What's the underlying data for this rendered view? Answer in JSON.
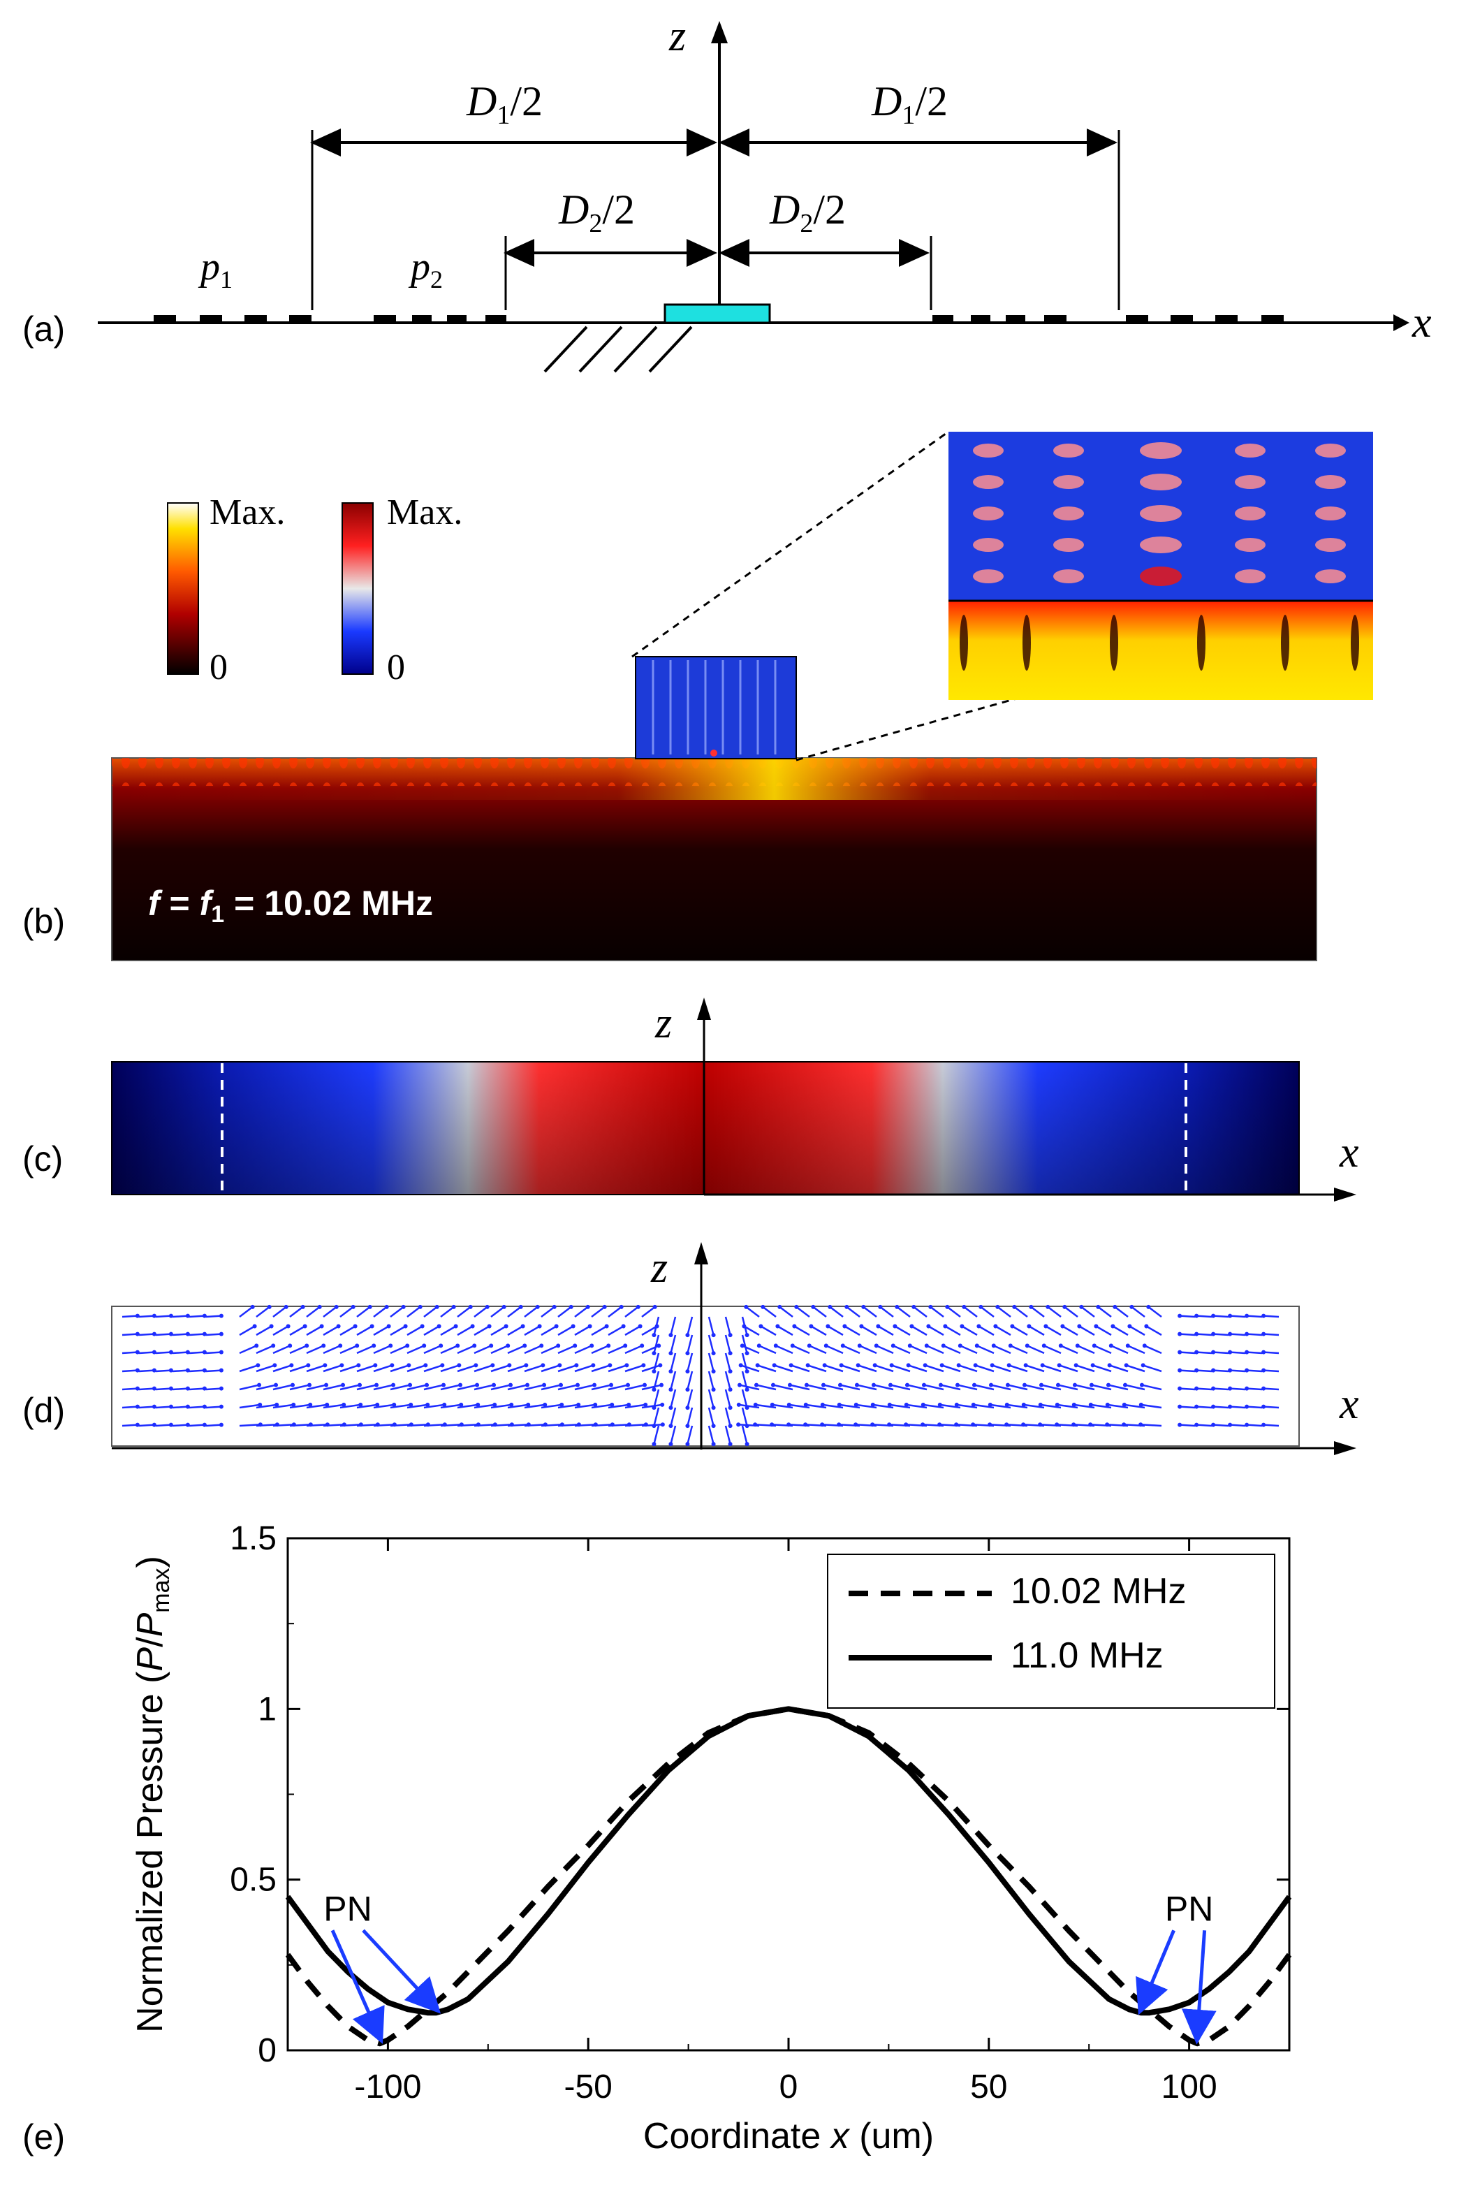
{
  "panels": {
    "a": "(a)",
    "b": "(b)",
    "c": "(c)",
    "d": "(d)",
    "e": "(e)"
  },
  "schematic": {
    "z_axis": "z",
    "x_axis": "x",
    "d1_half": "D",
    "d1_sub": "1",
    "d2_half": "D",
    "d2_sub": "2",
    "half_suffix": "/2",
    "p1": "p",
    "p1_sub": "1",
    "p2": "p",
    "p2_sub": "2"
  },
  "field_map": {
    "colorbar_hot_max": "Max.",
    "colorbar_hot_min": "0",
    "colorbar_bwr_max": "Max.",
    "colorbar_bwr_min": "0",
    "freq_f": "f",
    "freq_eq": " = ",
    "freq_f1": "f",
    "freq_sub": "1",
    "freq_value": " = 10.02 MHz"
  },
  "pressure_panel": {
    "z_axis": "z",
    "x_axis": "x"
  },
  "vector_panel": {
    "z_axis": "z",
    "x_axis": "x"
  },
  "chart_data": {
    "type": "line",
    "xlabel_prefix": "Coordinate ",
    "xlabel_var": "x",
    "xlabel_suffix": " (um)",
    "ylabel_prefix": "Normalized Pressure (",
    "ylabel_p": "P",
    "ylabel_slash": "/",
    "ylabel_pmax": "P",
    "ylabel_max_sub": "max",
    "ylabel_suffix": ")",
    "xlim": [
      -125,
      125
    ],
    "ylim": [
      0,
      1.5
    ],
    "xticks": [
      "-100",
      "-50",
      "0",
      "50",
      "100"
    ],
    "xtick_values": [
      -100,
      -50,
      0,
      50,
      100
    ],
    "yticks": [
      "0",
      "0.5",
      "1",
      "1.5"
    ],
    "ytick_values": [
      0,
      0.5,
      1,
      1.5
    ],
    "legend_position": "top-right",
    "annotations": [
      "PN",
      "PN"
    ],
    "series": [
      {
        "name": "10.02 MHz",
        "style": "dashed",
        "x": [
          -125,
          -120,
          -115,
          -110,
          -105,
          -102,
          -100,
          -95,
          -90,
          -85,
          -80,
          -70,
          -60,
          -50,
          -40,
          -30,
          -20,
          -10,
          0,
          10,
          20,
          30,
          40,
          50,
          60,
          70,
          80,
          85,
          90,
          95,
          100,
          102,
          105,
          110,
          115,
          120,
          125
        ],
        "y": [
          0.28,
          0.2,
          0.13,
          0.07,
          0.03,
          0.02,
          0.03,
          0.07,
          0.12,
          0.17,
          0.23,
          0.35,
          0.48,
          0.6,
          0.73,
          0.84,
          0.93,
          0.98,
          1.0,
          0.98,
          0.93,
          0.84,
          0.73,
          0.6,
          0.48,
          0.35,
          0.23,
          0.17,
          0.12,
          0.07,
          0.03,
          0.02,
          0.03,
          0.07,
          0.13,
          0.2,
          0.28
        ]
      },
      {
        "name": "11.0 MHz",
        "style": "solid",
        "x": [
          -125,
          -120,
          -115,
          -110,
          -105,
          -100,
          -95,
          -90,
          -88,
          -85,
          -80,
          -70,
          -60,
          -50,
          -40,
          -30,
          -20,
          -10,
          0,
          10,
          20,
          30,
          40,
          50,
          60,
          70,
          80,
          85,
          88,
          90,
          95,
          100,
          105,
          110,
          115,
          120,
          125
        ],
        "y": [
          0.45,
          0.37,
          0.29,
          0.23,
          0.18,
          0.14,
          0.12,
          0.11,
          0.11,
          0.12,
          0.15,
          0.26,
          0.4,
          0.55,
          0.69,
          0.82,
          0.92,
          0.98,
          1.0,
          0.98,
          0.92,
          0.82,
          0.69,
          0.55,
          0.4,
          0.26,
          0.15,
          0.12,
          0.11,
          0.11,
          0.12,
          0.14,
          0.18,
          0.23,
          0.29,
          0.37,
          0.45
        ]
      }
    ]
  }
}
